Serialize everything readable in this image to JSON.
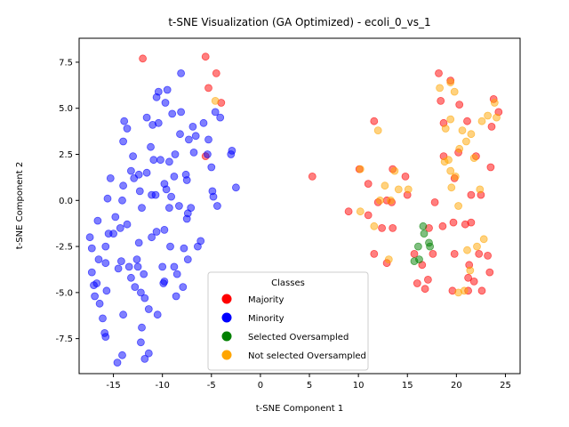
{
  "chart_data": {
    "type": "scatter",
    "title": "t-SNE Visualization (GA Optimized) - ecoli_0_vs_1",
    "xlabel": "t-SNE Component 1",
    "ylabel": "t-SNE Component 2",
    "xlim": [
      -18.5,
      26.5
    ],
    "ylim": [
      -9.4,
      8.8
    ],
    "x_ticks": [
      -15,
      -10,
      -5,
      0,
      5,
      10,
      15,
      20,
      25
    ],
    "y_ticks": [
      -7.5,
      -5.0,
      -2.5,
      0.0,
      2.5,
      5.0,
      7.5
    ],
    "grid": false,
    "legend": {
      "title": "Classes",
      "placement": "lower-center",
      "entries": [
        {
          "label": "Majority",
          "color": "#ff0000"
        },
        {
          "label": "Minority",
          "color": "#0000ff"
        },
        {
          "label": "Selected Oversampled",
          "color": "#008000"
        },
        {
          "label": "Not selected Oversampled",
          "color": "#ffa500"
        }
      ]
    },
    "series": [
      {
        "name": "Majority",
        "color": "#ff0000",
        "points": [
          [
            -12.0,
            7.7
          ],
          [
            -5.6,
            7.8
          ],
          [
            -4.5,
            6.9
          ],
          [
            -5.3,
            6.1
          ],
          [
            -4.0,
            5.3
          ],
          [
            -5.6,
            2.4
          ],
          [
            5.3,
            1.3
          ],
          [
            10.1,
            1.7
          ],
          [
            9.0,
            -0.6
          ],
          [
            11.0,
            0.9
          ],
          [
            11.0,
            -0.8
          ],
          [
            11.6,
            4.3
          ],
          [
            12.0,
            -0.1
          ],
          [
            12.4,
            -1.5
          ],
          [
            11.6,
            -2.9
          ],
          [
            12.9,
            0.0
          ],
          [
            13.5,
            1.7
          ],
          [
            13.4,
            -0.1
          ],
          [
            13.5,
            -1.5
          ],
          [
            12.9,
            -3.4
          ],
          [
            14.8,
            1.3
          ],
          [
            15.0,
            0.3
          ],
          [
            15.7,
            -2.9
          ],
          [
            16.0,
            -4.5
          ],
          [
            16.5,
            -3.5
          ],
          [
            16.8,
            -4.8
          ],
          [
            17.2,
            -1.5
          ],
          [
            17.1,
            -4.3
          ],
          [
            17.6,
            -2.9
          ],
          [
            17.8,
            -0.1
          ],
          [
            18.2,
            6.9
          ],
          [
            18.4,
            5.4
          ],
          [
            18.7,
            4.2
          ],
          [
            18.7,
            2.4
          ],
          [
            18.6,
            -1.4
          ],
          [
            19.4,
            6.5
          ],
          [
            20.3,
            5.2
          ],
          [
            20.2,
            2.6
          ],
          [
            19.8,
            1.2
          ],
          [
            19.7,
            -1.2
          ],
          [
            19.8,
            -2.9
          ],
          [
            19.6,
            -4.9
          ],
          [
            20.9,
            -1.3
          ],
          [
            21.1,
            4.3
          ],
          [
            21.2,
            -4.9
          ],
          [
            21.3,
            -3.5
          ],
          [
            21.5,
            0.3
          ],
          [
            21.5,
            -1.2
          ],
          [
            21.8,
            -4.4
          ],
          [
            22.0,
            2.4
          ],
          [
            22.3,
            -2.9
          ],
          [
            22.5,
            0.3
          ],
          [
            22.6,
            -4.9
          ],
          [
            23.2,
            -3.0
          ],
          [
            23.4,
            -3.9
          ],
          [
            23.5,
            1.8
          ],
          [
            23.6,
            4.0
          ],
          [
            23.8,
            5.5
          ],
          [
            24.3,
            4.8
          ],
          [
            21.2,
            -4.2
          ]
        ]
      },
      {
        "name": "Minority",
        "color": "#0000ff",
        "points": [
          [
            -17.4,
            -2.0
          ],
          [
            -17.2,
            -2.6
          ],
          [
            -17.2,
            -3.9
          ],
          [
            -17.0,
            -4.6
          ],
          [
            -16.9,
            -5.2
          ],
          [
            -16.7,
            -4.5
          ],
          [
            -16.6,
            -1.1
          ],
          [
            -16.5,
            -3.2
          ],
          [
            -16.4,
            -5.6
          ],
          [
            -16.1,
            -6.4
          ],
          [
            -15.9,
            -7.2
          ],
          [
            -15.8,
            -7.4
          ],
          [
            -15.8,
            -2.5
          ],
          [
            -15.8,
            -3.4
          ],
          [
            -15.7,
            -4.9
          ],
          [
            -15.6,
            0.1
          ],
          [
            -15.5,
            -1.8
          ],
          [
            -15.3,
            1.2
          ],
          [
            -15.0,
            -1.8
          ],
          [
            -14.8,
            -0.9
          ],
          [
            -14.6,
            -8.8
          ],
          [
            -14.5,
            -3.7
          ],
          [
            -14.3,
            -1.5
          ],
          [
            -14.2,
            -3.3
          ],
          [
            -14.1,
            -8.4
          ],
          [
            -14.1,
            0.0
          ],
          [
            -14.0,
            0.8
          ],
          [
            -14.0,
            3.2
          ],
          [
            -14.0,
            -6.2
          ],
          [
            -13.9,
            4.3
          ],
          [
            -13.6,
            3.9
          ],
          [
            -13.6,
            -1.3
          ],
          [
            -13.4,
            -3.6
          ],
          [
            -13.2,
            -4.2
          ],
          [
            -13.2,
            1.6
          ],
          [
            -13.0,
            2.4
          ],
          [
            -12.9,
            1.2
          ],
          [
            -12.8,
            -4.7
          ],
          [
            -12.6,
            -3.2
          ],
          [
            -12.5,
            -3.6
          ],
          [
            -12.4,
            -2.3
          ],
          [
            -12.4,
            1.4
          ],
          [
            -12.3,
            0.5
          ],
          [
            -12.2,
            -5.0
          ],
          [
            -12.2,
            -7.7
          ],
          [
            -12.1,
            -0.4
          ],
          [
            -12.1,
            -6.9
          ],
          [
            -11.9,
            -4.0
          ],
          [
            -11.8,
            -5.3
          ],
          [
            -11.8,
            -8.6
          ],
          [
            -11.6,
            1.5
          ],
          [
            -11.6,
            4.5
          ],
          [
            -11.4,
            -5.9
          ],
          [
            -11.4,
            -8.3
          ],
          [
            -11.2,
            2.9
          ],
          [
            -11.1,
            -2.0
          ],
          [
            -11.1,
            0.3
          ],
          [
            -11.0,
            4.1
          ],
          [
            -10.9,
            2.2
          ],
          [
            -10.7,
            0.3
          ],
          [
            -10.6,
            -1.7
          ],
          [
            -10.6,
            5.6
          ],
          [
            -10.5,
            -6.2
          ],
          [
            -10.4,
            4.2
          ],
          [
            -10.4,
            5.9
          ],
          [
            -10.2,
            2.2
          ],
          [
            -10.0,
            -3.6
          ],
          [
            -9.9,
            -4.5
          ],
          [
            -9.8,
            0.9
          ],
          [
            -9.8,
            -1.6
          ],
          [
            -9.7,
            5.3
          ],
          [
            -9.6,
            0.6
          ],
          [
            -9.5,
            6.0
          ],
          [
            -9.3,
            2.1
          ],
          [
            -9.3,
            -0.4
          ],
          [
            -9.2,
            -2.5
          ],
          [
            -9.1,
            0.2
          ],
          [
            -9.0,
            4.7
          ],
          [
            -8.8,
            -3.6
          ],
          [
            -8.7,
            2.5
          ],
          [
            -8.6,
            -5.2
          ],
          [
            -8.5,
            -4.0
          ],
          [
            -8.3,
            -0.3
          ],
          [
            -8.2,
            3.6
          ],
          [
            -8.1,
            6.9
          ],
          [
            -8.1,
            4.8
          ],
          [
            -7.9,
            -4.7
          ],
          [
            -7.8,
            -2.6
          ],
          [
            -7.6,
            1.4
          ],
          [
            -7.5,
            1.1
          ],
          [
            -7.5,
            -1.0
          ],
          [
            -7.4,
            -3.2
          ],
          [
            -7.3,
            3.3
          ],
          [
            -7.1,
            -0.4
          ],
          [
            -6.9,
            4.0
          ],
          [
            -6.8,
            2.6
          ],
          [
            -6.6,
            3.5
          ],
          [
            -6.4,
            -2.5
          ],
          [
            -6.1,
            -2.2
          ],
          [
            -5.8,
            4.2
          ],
          [
            -5.4,
            2.5
          ],
          [
            -5.3,
            3.3
          ],
          [
            -5.0,
            1.8
          ],
          [
            -4.9,
            0.5
          ],
          [
            -4.8,
            0.2
          ],
          [
            -4.6,
            4.8
          ],
          [
            -4.4,
            -0.3
          ],
          [
            -4.1,
            4.5
          ],
          [
            -3.0,
            2.5
          ],
          [
            -2.9,
            2.7
          ],
          [
            -2.5,
            0.7
          ],
          [
            -9.8,
            -4.4
          ],
          [
            -7.4,
            -0.7
          ],
          [
            -8.8,
            1.3
          ]
        ]
      },
      {
        "name": "Selected Oversampled",
        "color": "#008000",
        "points": [
          [
            15.7,
            -3.3
          ],
          [
            16.1,
            -2.5
          ],
          [
            16.2,
            -3.2
          ],
          [
            16.6,
            -1.4
          ],
          [
            16.7,
            -1.8
          ],
          [
            17.2,
            -2.3
          ],
          [
            17.3,
            -2.5
          ]
        ]
      },
      {
        "name": "Not selected Oversampled",
        "color": "#ffa500",
        "points": [
          [
            -4.6,
            5.4
          ],
          [
            10.2,
            -0.6
          ],
          [
            10.2,
            1.7
          ],
          [
            11.6,
            -1.4
          ],
          [
            12.0,
            3.8
          ],
          [
            12.2,
            0.0
          ],
          [
            12.7,
            0.8
          ],
          [
            13.1,
            -3.2
          ],
          [
            13.3,
            0.0
          ],
          [
            13.7,
            1.6
          ],
          [
            14.1,
            0.6
          ],
          [
            15.1,
            0.6
          ],
          [
            18.3,
            6.1
          ],
          [
            18.8,
            2.1
          ],
          [
            18.9,
            3.9
          ],
          [
            19.2,
            2.2
          ],
          [
            19.4,
            4.4
          ],
          [
            19.4,
            6.4
          ],
          [
            19.4,
            1.6
          ],
          [
            19.5,
            0.7
          ],
          [
            19.8,
            5.9
          ],
          [
            19.9,
            1.3
          ],
          [
            20.2,
            -0.3
          ],
          [
            20.2,
            -5.0
          ],
          [
            20.3,
            2.8
          ],
          [
            20.6,
            3.8
          ],
          [
            20.8,
            -4.9
          ],
          [
            21.0,
            3.2
          ],
          [
            21.1,
            -2.7
          ],
          [
            21.4,
            -3.8
          ],
          [
            21.5,
            3.6
          ],
          [
            21.8,
            2.3
          ],
          [
            22.1,
            -2.5
          ],
          [
            22.4,
            0.6
          ],
          [
            22.6,
            4.3
          ],
          [
            22.8,
            -2.1
          ],
          [
            23.2,
            4.6
          ],
          [
            23.9,
            5.3
          ],
          [
            24.1,
            4.5
          ]
        ]
      }
    ]
  }
}
